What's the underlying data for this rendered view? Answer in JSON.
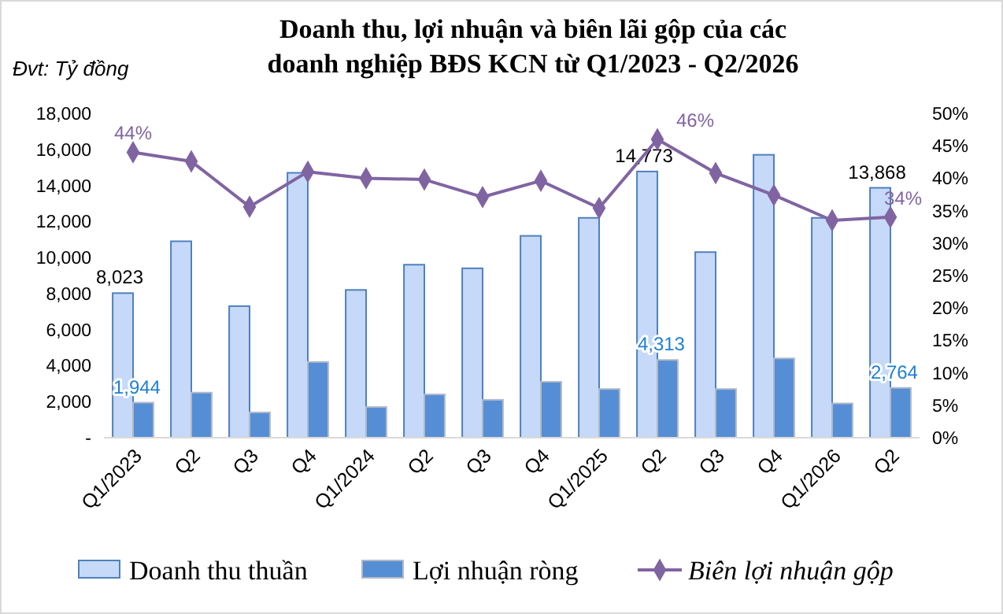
{
  "chart_data": {
    "type": "bar",
    "title": "Doanh thu, lợi nhuận và biên lãi gộp của các\ndoanh nghiệp BĐS KCN từ Q1/2023 - Q2/2026",
    "annotations": [
      "Đvt: Tỷ đồng"
    ],
    "categories": [
      "Q1/2023",
      "Q2",
      "Q3",
      "Q4",
      "Q1/2024",
      "Q2",
      "Q3",
      "Q4",
      "Q1/2025",
      "Q2",
      "Q3",
      "Q4",
      "Q1/2026",
      "Q2"
    ],
    "series": [
      {
        "name": "Doanh thu thuần",
        "color": "#c6d9f8",
        "values": [
          8023,
          10900,
          7300,
          14700,
          8200,
          9600,
          9400,
          11200,
          12200,
          14773,
          10300,
          15700,
          12200,
          13868
        ],
        "value_labels": [
          "8,023",
          null,
          null,
          null,
          null,
          null,
          null,
          null,
          null,
          "14,773",
          null,
          null,
          null,
          "13,868"
        ]
      },
      {
        "name": "Lợi nhuận ròng",
        "color": "#558ed5",
        "values": [
          1944,
          2500,
          1400,
          4200,
          1700,
          2400,
          2100,
          3100,
          2700,
          4313,
          2700,
          4400,
          1900,
          2764
        ],
        "value_labels": [
          "1,944",
          null,
          null,
          null,
          null,
          null,
          null,
          null,
          null,
          "4,313",
          null,
          null,
          null,
          "2,764"
        ]
      },
      {
        "name": "Biên lợi nhuận gộp",
        "type": "line",
        "axis": "y2",
        "color": "#8064a2",
        "values": [
          44,
          42.6,
          35.6,
          41,
          40,
          39.8,
          37.1,
          39.6,
          35.4,
          46,
          40.8,
          37.4,
          33.5,
          34
        ],
        "value_labels": [
          "44%",
          null,
          null,
          null,
          null,
          null,
          null,
          null,
          null,
          "46%",
          null,
          null,
          null,
          "34%"
        ]
      }
    ],
    "ylim": [
      0,
      18000
    ],
    "yticks": [
      {
        "value": 0,
        "label": "-"
      },
      {
        "value": 2000,
        "label": "2,000"
      },
      {
        "value": 4000,
        "label": "4,000"
      },
      {
        "value": 6000,
        "label": "6,000"
      },
      {
        "value": 8000,
        "label": "8,000"
      },
      {
        "value": 10000,
        "label": "10,000"
      },
      {
        "value": 12000,
        "label": "12,000"
      },
      {
        "value": 14000,
        "label": "14,000"
      },
      {
        "value": 16000,
        "label": "16,000"
      },
      {
        "value": 18000,
        "label": "18,000"
      }
    ],
    "y2lim": [
      0,
      50
    ],
    "y2ticks": [
      {
        "value": 0,
        "label": "0%"
      },
      {
        "value": 5,
        "label": "5%"
      },
      {
        "value": 10,
        "label": "10%"
      },
      {
        "value": 15,
        "label": "15%"
      },
      {
        "value": 20,
        "label": "20%"
      },
      {
        "value": 25,
        "label": "25%"
      },
      {
        "value": 30,
        "label": "30%"
      },
      {
        "value": 35,
        "label": "35%"
      },
      {
        "value": 40,
        "label": "40%"
      },
      {
        "value": 45,
        "label": "45%"
      },
      {
        "value": 50,
        "label": "50%"
      }
    ],
    "marker": "diamond",
    "legend": "bottom",
    "grid": false
  }
}
